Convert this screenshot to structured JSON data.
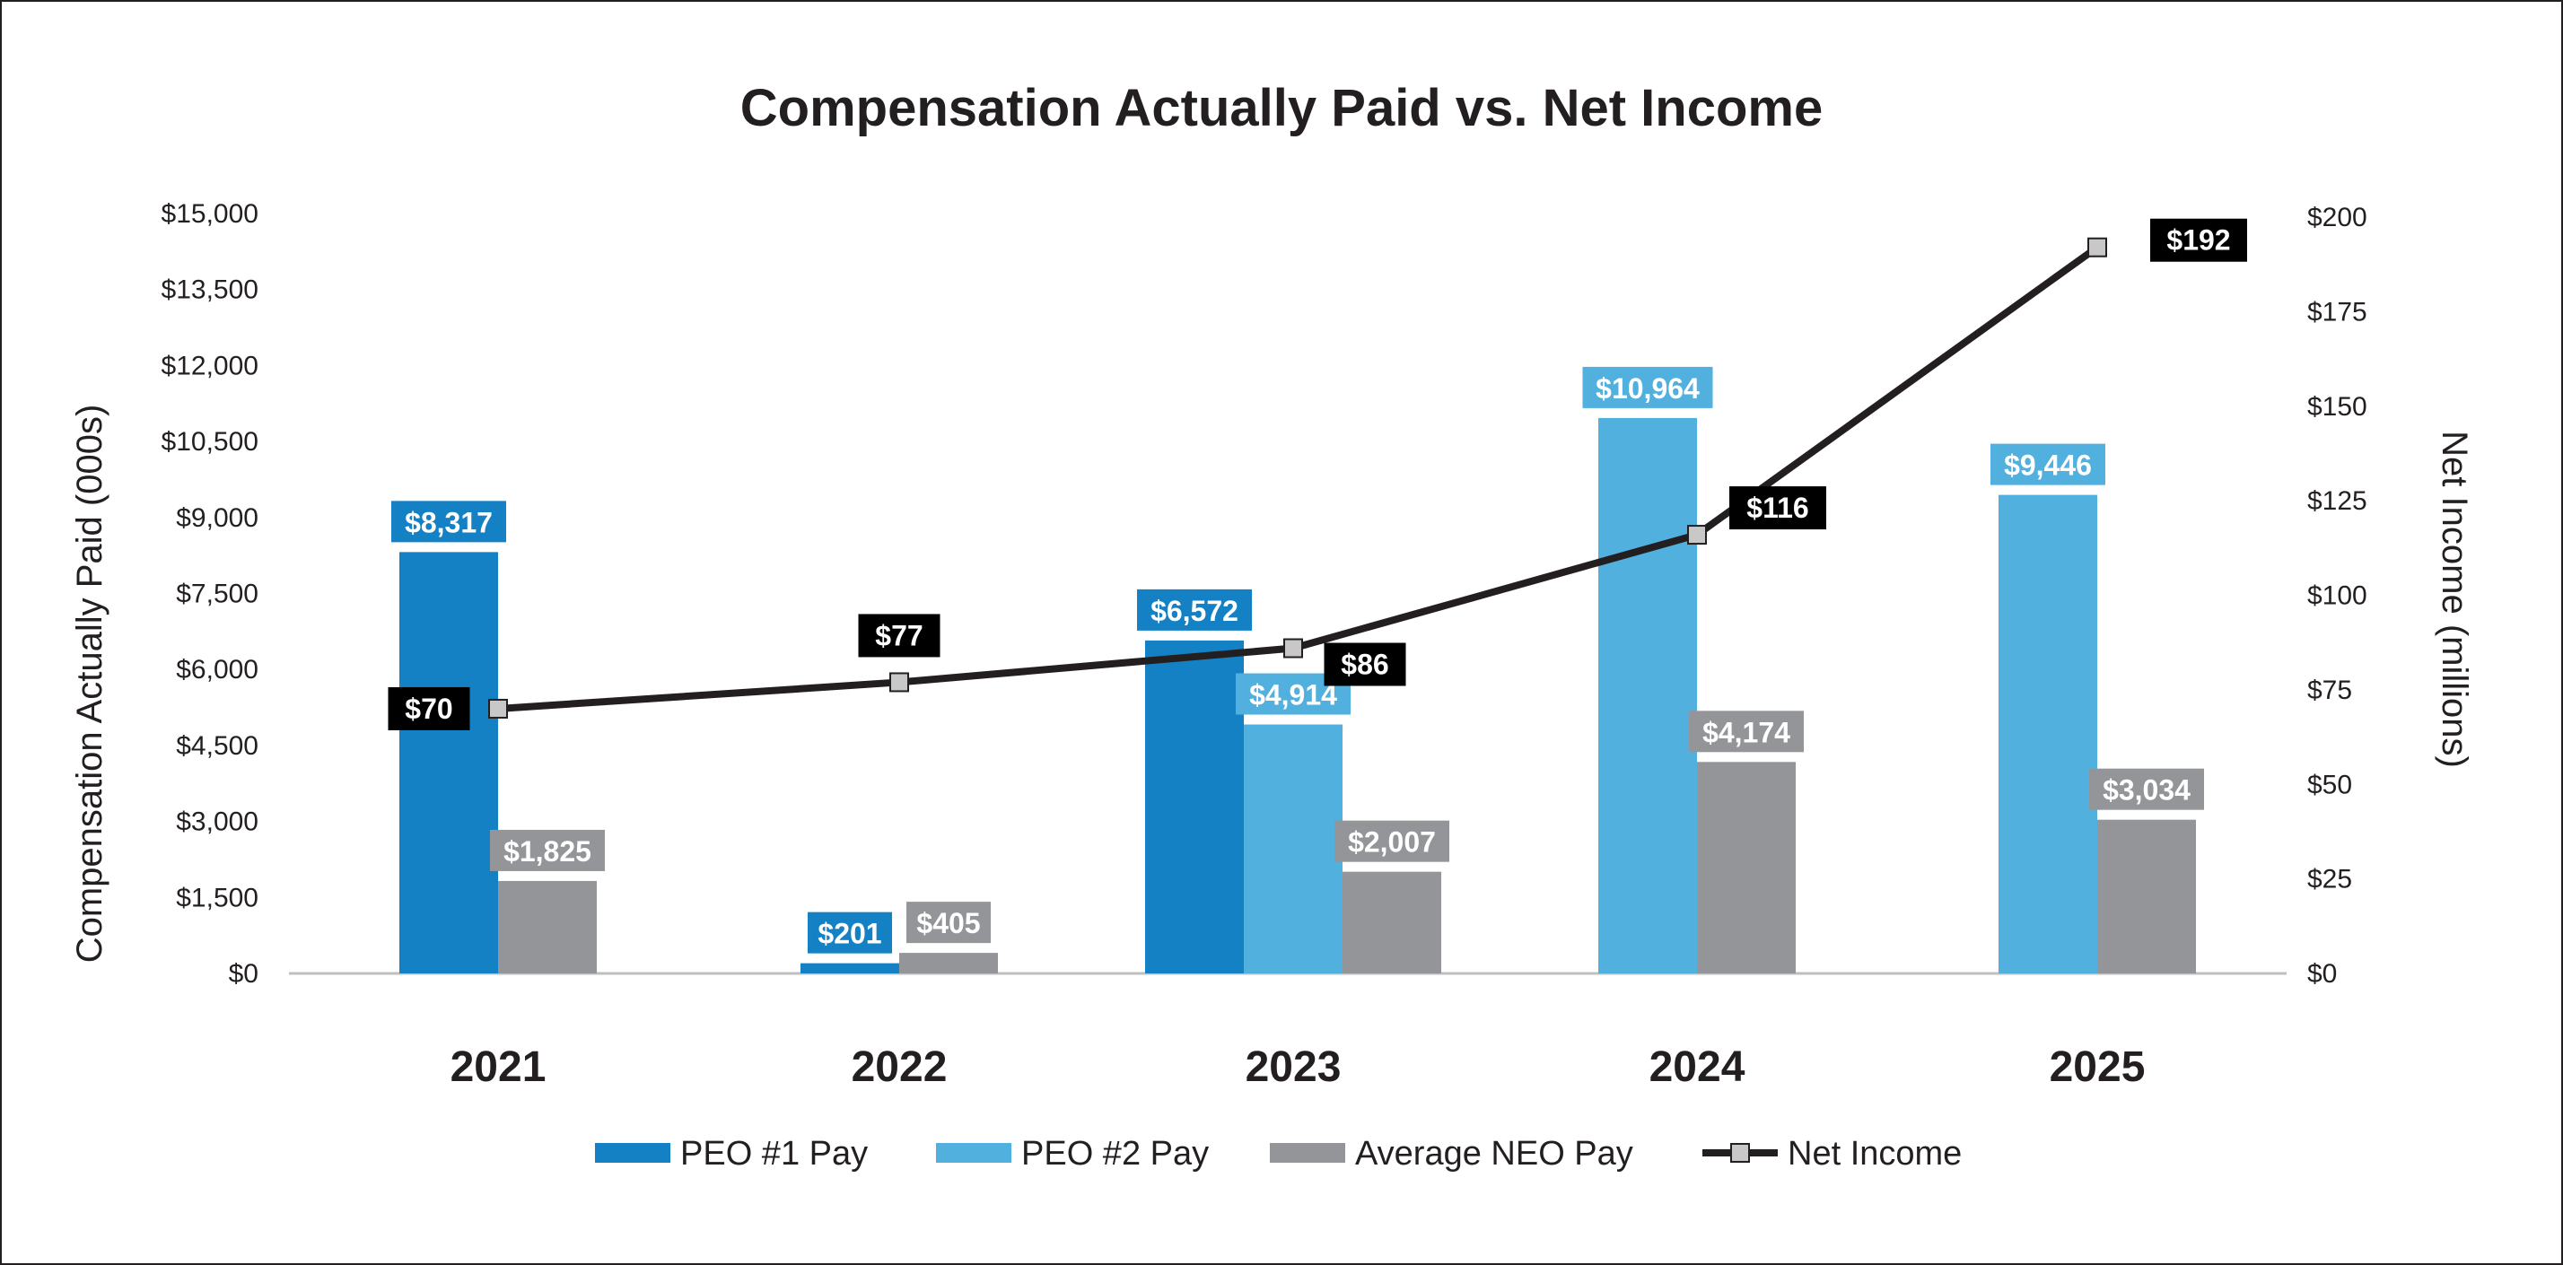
{
  "chart_data": {
    "type": "bar",
    "title": "Compensation Actually Paid vs. Net Income",
    "categories": [
      "2021",
      "2022",
      "2023",
      "2024",
      "2025"
    ],
    "ylabel": "Compensation Actually Paid (000s)",
    "y2label": "Net Income (millions)",
    "ylim": [
      0,
      15000
    ],
    "y2lim": [
      0,
      200
    ],
    "yticks": [
      "$0",
      "$1,500",
      "$3,000",
      "$4,500",
      "$6,000",
      "$7,500",
      "$9,000",
      "$10,500",
      "$12,000",
      "$13,500",
      "$15,000"
    ],
    "y2ticks": [
      "$0",
      "$25",
      "$50",
      "$75",
      "$100",
      "$125",
      "$150",
      "$175",
      "$200"
    ],
    "legend_position": "bottom",
    "series": [
      {
        "name": "PEO #1 Pay",
        "kind": "bar",
        "color": "#1581c5",
        "values": [
          8317,
          201,
          6572,
          null,
          null
        ],
        "labels": [
          "$8,317",
          "$201",
          "$6,572",
          null,
          null
        ]
      },
      {
        "name": "PEO #2 Pay",
        "kind": "bar",
        "color": "#51b0de",
        "values": [
          null,
          null,
          4914,
          10964,
          9446
        ],
        "labels": [
          null,
          null,
          "$4,914",
          "$10,964",
          "$9,446"
        ]
      },
      {
        "name": "Average NEO Pay",
        "kind": "bar",
        "color": "#939598",
        "values": [
          1825,
          405,
          2007,
          4174,
          3034
        ],
        "labels": [
          "$1,825",
          "$405",
          "$2,007",
          "$4,174",
          "$3,034"
        ]
      },
      {
        "name": "Net Income",
        "kind": "line",
        "axis": "secondary",
        "color": "#231f20",
        "marker_color": "#c8c8c8",
        "values": [
          70,
          77,
          86,
          116,
          192
        ],
        "labels": [
          "$70",
          "$77",
          "$86",
          "$116",
          "$192"
        ]
      }
    ]
  }
}
